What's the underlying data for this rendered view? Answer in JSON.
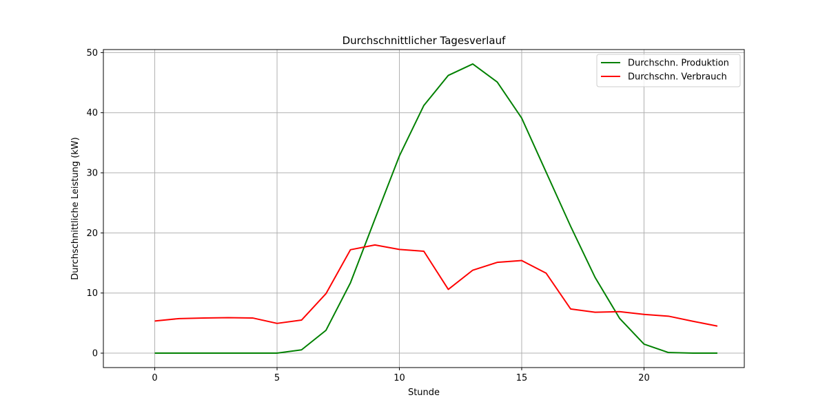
{
  "chart_data": {
    "type": "line",
    "title": "Durchschnittlicher Tagesverlauf",
    "xlabel": "Stunde",
    "ylabel": "Durchschnittliche Leistung (kW)",
    "x": [
      0,
      1,
      2,
      3,
      4,
      5,
      6,
      7,
      8,
      9,
      10,
      11,
      12,
      13,
      14,
      15,
      16,
      17,
      18,
      19,
      20,
      21,
      22,
      23
    ],
    "xlim": [
      -2.1,
      24.1
    ],
    "ylim": [
      -2.4,
      50.5
    ],
    "xticks": [
      0,
      5,
      10,
      15,
      20
    ],
    "yticks": [
      0,
      10,
      20,
      30,
      40,
      50
    ],
    "grid": true,
    "legend_position": "upper-right",
    "series": [
      {
        "name": "Durchschn. Produktion",
        "color": "#008000",
        "values": [
          0,
          0,
          0,
          0,
          0,
          0,
          0.55,
          3.8,
          11.7,
          22.3,
          32.8,
          41.2,
          46.2,
          48.1,
          45.1,
          39.1,
          30.1,
          21.1,
          12.6,
          5.8,
          1.5,
          0.1,
          0.0,
          0.0
        ]
      },
      {
        "name": "Durchschn. Verbrauch",
        "color": "#ff0000",
        "values": [
          5.35,
          5.75,
          5.85,
          5.9,
          5.85,
          4.95,
          5.5,
          9.9,
          17.2,
          18.0,
          17.25,
          16.95,
          10.6,
          13.8,
          15.1,
          15.4,
          13.3,
          7.35,
          6.8,
          6.9,
          6.45,
          6.15,
          5.3,
          4.5
        ]
      }
    ]
  }
}
